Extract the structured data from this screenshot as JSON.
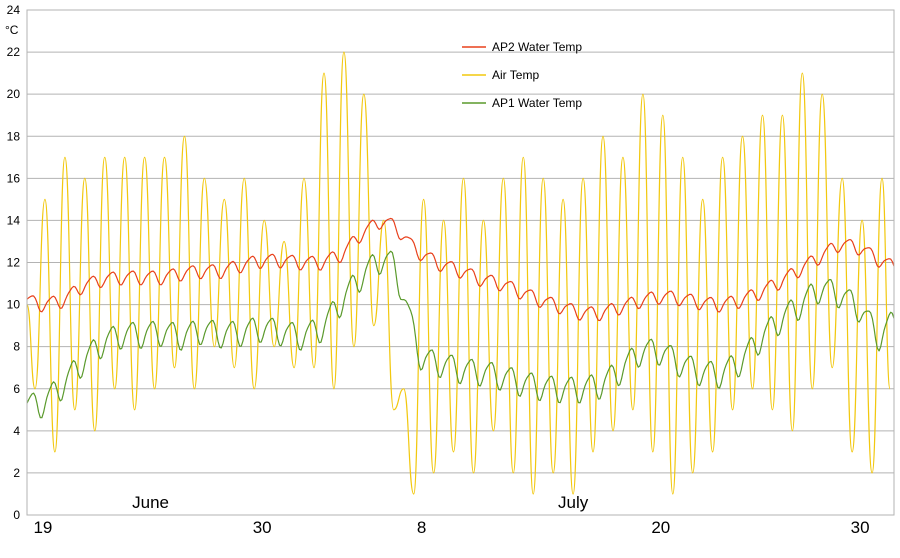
{
  "chart_data": {
    "type": "line",
    "title": "",
    "ylabel": "°C",
    "xlabel": "",
    "ylim": [
      0,
      24
    ],
    "xlim": [
      18.2,
      61.7
    ],
    "grid": true,
    "legend_position": "top-center",
    "yticks": [
      0,
      2,
      4,
      6,
      8,
      10,
      12,
      14,
      16,
      18,
      20,
      22,
      24
    ],
    "xticks": [
      {
        "x": 19,
        "label": "19"
      },
      {
        "x": 30,
        "label": "30"
      },
      {
        "x": 38,
        "label": "8"
      },
      {
        "x": 50,
        "label": "20"
      },
      {
        "x": 60,
        "label": "30"
      }
    ],
    "months": [
      {
        "x": 24.4,
        "label": "June"
      },
      {
        "x": 45.6,
        "label": "July"
      }
    ],
    "series": [
      {
        "name": "AP2 Water Temp",
        "color": "#e8401c",
        "x": [
          18.2,
          19,
          20,
          21,
          22,
          23,
          24,
          25,
          26,
          27,
          28,
          29,
          30,
          31,
          32,
          33,
          34,
          35,
          35.5,
          36,
          36.5,
          37,
          37.5,
          38,
          39,
          40,
          41,
          42,
          43,
          44,
          45,
          46,
          47,
          48,
          49,
          50,
          51,
          52,
          53,
          54,
          55,
          56,
          57,
          58,
          59,
          60,
          61,
          61.7
        ],
        "y": [
          10.2,
          10.0,
          10.2,
          10.9,
          11.2,
          11.3,
          11.3,
          11.3,
          11.5,
          11.6,
          11.6,
          11.9,
          12.1,
          12.1,
          12.0,
          12.0,
          12.4,
          13.4,
          13.7,
          14.0,
          13.8,
          13.4,
          12.8,
          12.4,
          11.9,
          11.6,
          11.2,
          11.0,
          10.6,
          10.2,
          9.9,
          9.6,
          9.6,
          9.9,
          10.2,
          10.4,
          10.3,
          10.1,
          10.0,
          10.2,
          10.6,
          11.1,
          11.7,
          12.3,
          12.9,
          12.7,
          12.1,
          11.8
        ],
        "amp": 0.45
      },
      {
        "name": "Air Temp",
        "color": "#f2c80f",
        "x": [
          18.2,
          18.6,
          19.1,
          19.6,
          20.1,
          20.6,
          21.1,
          21.6,
          22.1,
          22.6,
          23.1,
          23.6,
          24.1,
          24.6,
          25.1,
          25.6,
          26.1,
          26.6,
          27.1,
          27.6,
          28.1,
          28.6,
          29.1,
          29.6,
          30.1,
          30.6,
          31.1,
          31.6,
          32.1,
          32.6,
          33.1,
          33.6,
          34.1,
          34.6,
          35.1,
          35.6,
          36.1,
          36.6,
          37.1,
          37.6,
          38.1,
          38.6,
          39.1,
          39.6,
          40.1,
          40.6,
          41.1,
          41.6,
          42.1,
          42.6,
          43.1,
          43.6,
          44.1,
          44.6,
          45.1,
          45.6,
          46.1,
          46.6,
          47.1,
          47.6,
          48.1,
          48.6,
          49.1,
          49.6,
          50.1,
          50.6,
          51.1,
          51.6,
          52.1,
          52.6,
          53.1,
          53.6,
          54.1,
          54.6,
          55.1,
          55.6,
          56.1,
          56.6,
          57.1,
          57.6,
          58.1,
          58.6,
          59.1,
          59.6,
          60.1,
          60.6,
          61.1,
          61.5
        ],
        "y": [
          10,
          6,
          15,
          3,
          17,
          5,
          16,
          4,
          17,
          6,
          17,
          5,
          17,
          6,
          17,
          7,
          18,
          6,
          16,
          8,
          15,
          7,
          16,
          6,
          14,
          8,
          13,
          7,
          16,
          7,
          21,
          6,
          22,
          8,
          20,
          9,
          14,
          5,
          6,
          1,
          15,
          2,
          14,
          3,
          16,
          2,
          14,
          4,
          16,
          2,
          17,
          1,
          16,
          2,
          15,
          1,
          16,
          3,
          18,
          4,
          17,
          5,
          20,
          3,
          19,
          1,
          17,
          2,
          15,
          3,
          17,
          5,
          18,
          6,
          19,
          5,
          19,
          4,
          21,
          6,
          20,
          7,
          16,
          3,
          14,
          2,
          16,
          6
        ],
        "amp": 0
      },
      {
        "name": "AP1 Water Temp",
        "color": "#5a9a2c",
        "x": [
          18.2,
          19,
          20,
          21,
          22,
          23,
          24,
          25,
          26,
          27,
          28,
          29,
          30,
          31,
          32,
          33,
          34,
          35,
          36,
          36.5,
          37,
          37.5,
          38,
          39,
          40,
          41,
          42,
          43,
          44,
          45,
          46,
          47,
          48,
          49,
          50,
          51,
          52,
          53,
          54,
          55,
          56,
          57,
          58,
          59,
          60,
          61,
          61.7
        ],
        "y": [
          5.2,
          5.3,
          6.2,
          7.3,
          8.2,
          8.6,
          8.6,
          8.7,
          8.5,
          8.8,
          8.6,
          8.7,
          8.9,
          8.7,
          8.5,
          8.9,
          10.2,
          11.4,
          12.2,
          12.0,
          10.8,
          9.0,
          7.4,
          7.2,
          6.9,
          6.8,
          6.6,
          6.3,
          6.1,
          6.0,
          6.0,
          6.2,
          6.9,
          7.8,
          7.8,
          7.2,
          6.8,
          6.7,
          7.3,
          8.4,
          9.3,
          10.0,
          10.8,
          10.5,
          9.8,
          8.4,
          9.3
        ],
        "amp": 0.85
      }
    ]
  }
}
